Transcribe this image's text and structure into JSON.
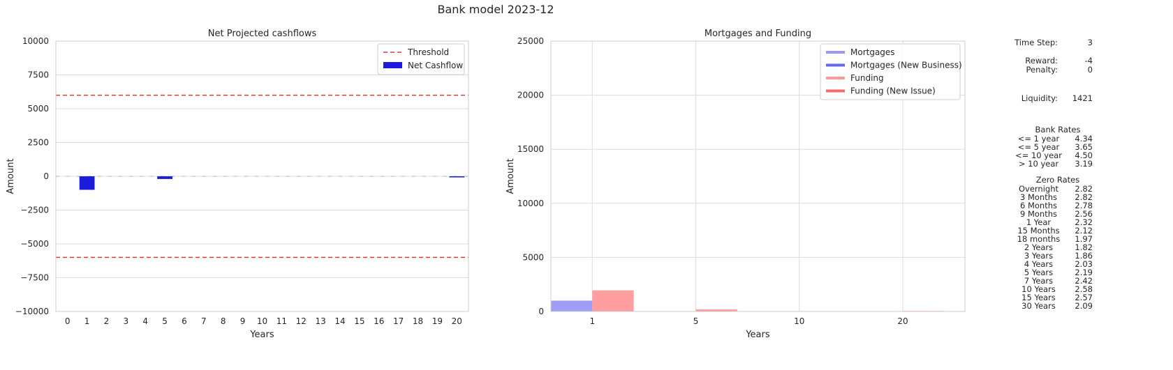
{
  "suptitle": "Bank model 2023-12",
  "chart_data": [
    {
      "type": "bar",
      "title": "Net Projected cashflows",
      "xlabel": "Years",
      "ylabel": "Amount",
      "categories": [
        "0",
        "1",
        "2",
        "3",
        "4",
        "5",
        "6",
        "7",
        "8",
        "9",
        "10",
        "11",
        "12",
        "13",
        "14",
        "15",
        "16",
        "17",
        "18",
        "19",
        "20"
      ],
      "series": [
        {
          "name": "Net Cashflow",
          "color": "#1c1cde",
          "values": [
            0,
            -1000,
            0,
            0,
            0,
            -200,
            0,
            0,
            0,
            0,
            0,
            0,
            0,
            0,
            0,
            0,
            0,
            0,
            0,
            0,
            -80
          ]
        }
      ],
      "thresholds": [
        6000,
        -6000
      ],
      "threshold_name": "Threshold",
      "threshold_color": "#d63a3a",
      "ylim": [
        -10000,
        10000
      ],
      "yticks": [
        -10000,
        -7500,
        -5000,
        -2500,
        0,
        2500,
        5000,
        7500,
        10000
      ],
      "ytick_labels": [
        "−10000",
        "−7500",
        "−5000",
        "−2500",
        "0",
        "2500",
        "5000",
        "7500",
        "10000"
      ],
      "grid": "horizontal",
      "legend": "top-right"
    },
    {
      "type": "bar",
      "title": "Mortgages and Funding",
      "xlabel": "Years",
      "ylabel": "Amount",
      "categories": [
        "1",
        "5",
        "10",
        "20"
      ],
      "series": [
        {
          "name": "Mortgages",
          "color": "#9999f5",
          "values": [
            1000,
            0,
            0,
            0
          ]
        },
        {
          "name": "Mortgages (New Business)",
          "color": "#6666ee",
          "values": [
            0,
            0,
            0,
            0
          ]
        },
        {
          "name": "Funding",
          "color": "#ff9999",
          "values": [
            1950,
            200,
            0,
            50
          ]
        },
        {
          "name": "Funding (New Issue)",
          "color": "#f96a6a",
          "values": [
            0,
            0,
            0,
            0
          ]
        }
      ],
      "ylim": [
        0,
        25000
      ],
      "yticks": [
        0,
        5000,
        10000,
        15000,
        20000,
        25000
      ],
      "ytick_labels": [
        "0",
        "5000",
        "10000",
        "15000",
        "20000",
        "25000"
      ],
      "grid": "both",
      "legend": "top-right"
    }
  ],
  "info": {
    "time_step": {
      "label": "Time Step:",
      "value": "3"
    },
    "reward": {
      "label": "Reward:",
      "value": "-4"
    },
    "penalty": {
      "label": "Penalty:",
      "value": "0"
    },
    "liquidity": {
      "label": "Liquidity:",
      "value": "1421"
    },
    "bank_rates": {
      "title": "Bank Rates",
      "rows": [
        {
          "label": "<= 1 year",
          "value": "4.34"
        },
        {
          "label": "<= 5 year",
          "value": "3.65"
        },
        {
          "label": "<= 10 year",
          "value": "4.50"
        },
        {
          "label": "> 10 year",
          "value": "3.19"
        }
      ]
    },
    "zero_rates": {
      "title": "Zero Rates",
      "rows": [
        {
          "label": "Overnight",
          "value": "2.82"
        },
        {
          "label": "3 Months",
          "value": "2.82"
        },
        {
          "label": "6 Months",
          "value": "2.78"
        },
        {
          "label": "9 Months",
          "value": "2.56"
        },
        {
          "label": "1 Year",
          "value": "2.32"
        },
        {
          "label": "15 Months",
          "value": "2.12"
        },
        {
          "label": "18 months",
          "value": "1.97"
        },
        {
          "label": "2 Years",
          "value": "1.82"
        },
        {
          "label": "3 Years",
          "value": "1.86"
        },
        {
          "label": "4 Years",
          "value": "2.03"
        },
        {
          "label": "5 Years",
          "value": "2.19"
        },
        {
          "label": "7 Years",
          "value": "2.42"
        },
        {
          "label": "10 Years",
          "value": "2.58"
        },
        {
          "label": "15 Years",
          "value": "2.57"
        },
        {
          "label": "30 Years",
          "value": "2.09"
        }
      ]
    }
  }
}
